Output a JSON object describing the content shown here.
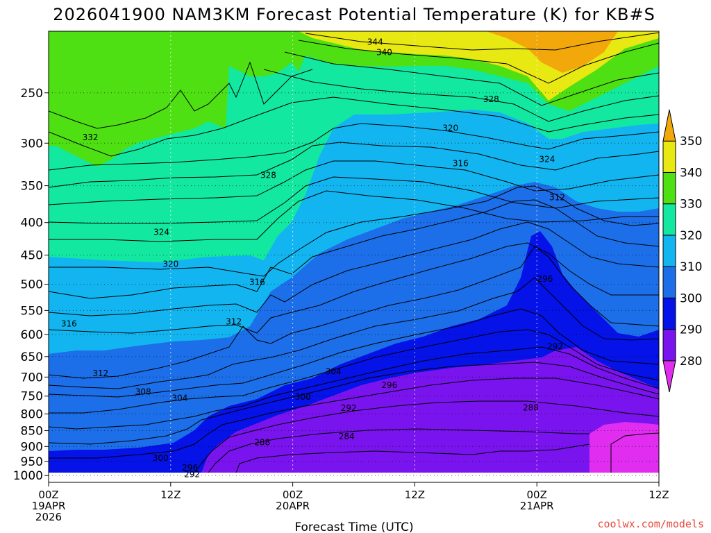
{
  "chart_data": {
    "type": "contour",
    "title": "2026041900 NAM3KM Forecast Potential Temperature (K) for KB#S",
    "xlabel": "Forecast Time (UTC)",
    "ylabel": "",
    "y_ticks": [
      250,
      300,
      350,
      400,
      450,
      500,
      550,
      600,
      650,
      700,
      750,
      800,
      850,
      900,
      950,
      1000
    ],
    "ylim_hpa": [
      1025,
      200
    ],
    "x_hours": [
      0,
      12,
      24,
      36,
      48,
      60
    ],
    "x_tick_labels": [
      {
        "hour": 0,
        "lines": [
          "00Z",
          "19APR",
          "2026"
        ]
      },
      {
        "hour": 12,
        "lines": [
          "12Z"
        ]
      },
      {
        "hour": 24,
        "lines": [
          "00Z",
          "20APR"
        ]
      },
      {
        "hour": 36,
        "lines": [
          "12Z"
        ]
      },
      {
        "hour": 48,
        "lines": [
          "00Z",
          "21APR"
        ]
      },
      {
        "hour": 60,
        "lines": [
          "12Z"
        ]
      }
    ],
    "colorbar": {
      "levels": [
        280,
        290,
        300,
        310,
        320,
        330,
        340,
        350
      ],
      "colors": [
        "#e02df0",
        "#7a14ee",
        "#0512e8",
        "#1c6fe8",
        "#12b5f0",
        "#12e8a0",
        "#4ee012",
        "#e8e812",
        "#f2a80a"
      ]
    },
    "contour_labels": [
      {
        "text": "344",
        "hour": 32.1,
        "hpa": 208
      },
      {
        "text": "340",
        "hour": 33.0,
        "hpa": 216
      },
      {
        "text": "328",
        "hour": 43.5,
        "hpa": 256
      },
      {
        "text": "332",
        "hour": 4.1,
        "hpa": 294
      },
      {
        "text": "320",
        "hour": 39.5,
        "hpa": 284
      },
      {
        "text": "324",
        "hour": 49.0,
        "hpa": 318
      },
      {
        "text": "316",
        "hour": 40.5,
        "hpa": 323
      },
      {
        "text": "328",
        "hour": 21.6,
        "hpa": 337
      },
      {
        "text": "312",
        "hour": 50.0,
        "hpa": 365
      },
      {
        "text": "324",
        "hour": 11.1,
        "hpa": 414
      },
      {
        "text": "320",
        "hour": 12.0,
        "hpa": 465
      },
      {
        "text": "316",
        "hour": 20.5,
        "hpa": 496
      },
      {
        "text": "296",
        "hour": 48.8,
        "hpa": 491
      },
      {
        "text": "316",
        "hour": 2.0,
        "hpa": 577
      },
      {
        "text": "312",
        "hour": 18.2,
        "hpa": 573
      },
      {
        "text": "292",
        "hour": 49.8,
        "hpa": 627
      },
      {
        "text": "312",
        "hour": 5.1,
        "hpa": 691
      },
      {
        "text": "304",
        "hour": 28.0,
        "hpa": 686
      },
      {
        "text": "308",
        "hour": 9.3,
        "hpa": 738
      },
      {
        "text": "296",
        "hour": 33.5,
        "hpa": 721
      },
      {
        "text": "304",
        "hour": 12.9,
        "hpa": 755
      },
      {
        "text": "300",
        "hour": 25.0,
        "hpa": 752
      },
      {
        "text": "292",
        "hour": 29.5,
        "hpa": 783
      },
      {
        "text": "288",
        "hour": 47.4,
        "hpa": 782
      },
      {
        "text": "284",
        "hour": 29.3,
        "hpa": 868
      },
      {
        "text": "288",
        "hour": 21.0,
        "hpa": 887
      },
      {
        "text": "300",
        "hour": 11.0,
        "hpa": 939
      },
      {
        "text": "296",
        "hour": 13.9,
        "hpa": 972
      },
      {
        "text": "292",
        "hour": 14.1,
        "hpa": 996
      }
    ]
  },
  "watermark": "coolwx.com/models"
}
